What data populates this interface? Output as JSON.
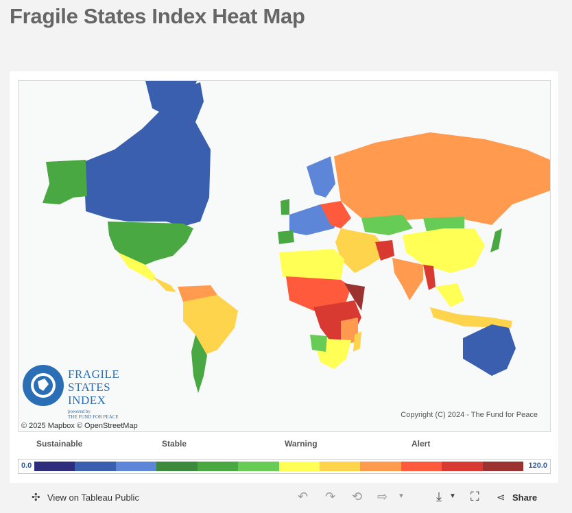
{
  "page": {
    "title": "Fragile States Index Heat Map"
  },
  "map": {
    "logo": {
      "line1": "FRAGILE",
      "line2": "STATES",
      "line3": "INDEX",
      "powered": "powered by",
      "org": "THE FUND FOR PEACE"
    },
    "credit": "© 2025 Mapbox  © OpenStreetMap",
    "copyright": "Copyright (C) 2024 - The Fund for Peace"
  },
  "legend": {
    "labels": [
      "Sustainable",
      "Stable",
      "Warning",
      "Alert"
    ],
    "min": "0.0",
    "max": "120.0",
    "colors": [
      "#2e2d7d",
      "#3a5fae",
      "#5e86d8",
      "#3d8a3c",
      "#4aa842",
      "#66cc55",
      "#ffff55",
      "#ffd44d",
      "#ff9a4f",
      "#ff5a3c",
      "#d83a32",
      "#9b3330"
    ]
  },
  "toolbar": {
    "view_label": "View on Tableau Public",
    "share_label": "Share"
  }
}
